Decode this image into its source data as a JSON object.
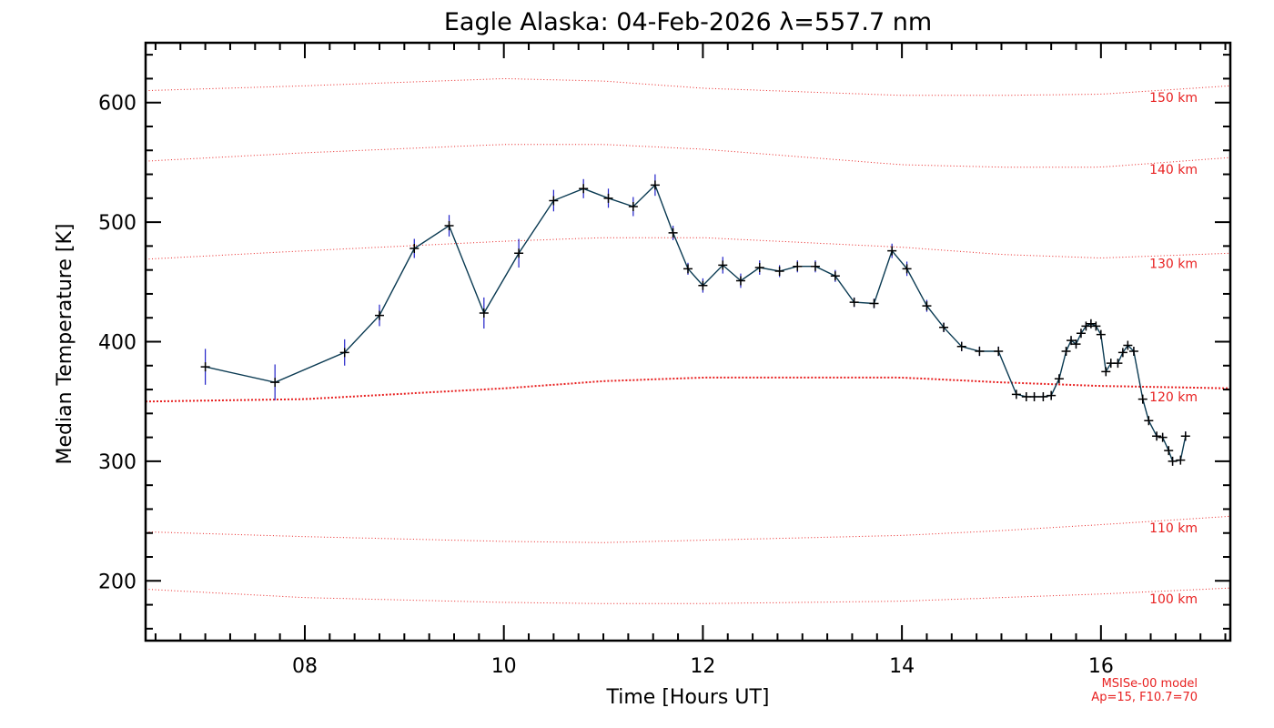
{
  "chart_data": {
    "type": "line",
    "title": "Eagle Alaska: 04-Feb-2026 λ=557.7 nm",
    "xlabel": "Time [Hours UT]",
    "ylabel": "Median Temperature [K]",
    "xlim": [
      6.4,
      17.3
    ],
    "ylim": [
      150,
      650
    ],
    "x_ticks": [
      8,
      10,
      12,
      14,
      16
    ],
    "x_tick_labels": [
      "08",
      "10",
      "12",
      "14",
      "16"
    ],
    "y_ticks": [
      200,
      300,
      400,
      500,
      600
    ],
    "y_tick_labels": [
      "200",
      "300",
      "400",
      "500",
      "600"
    ],
    "footnote": [
      "MSISe-00 model",
      "Ap=15, F10.7=70"
    ],
    "colors": {
      "line": "#0a3a52",
      "error": "#2020c8",
      "marker": "#000000",
      "model": "#e82020"
    },
    "series": [
      {
        "name": "Median Temperature",
        "points": [
          {
            "x": 7.0,
            "y": 379,
            "err": 15
          },
          {
            "x": 7.7,
            "y": 366,
            "err": 15
          },
          {
            "x": 8.4,
            "y": 391,
            "err": 11
          },
          {
            "x": 8.75,
            "y": 422,
            "err": 9
          },
          {
            "x": 9.1,
            "y": 478,
            "err": 8
          },
          {
            "x": 9.45,
            "y": 497,
            "err": 9
          },
          {
            "x": 9.8,
            "y": 424,
            "err": 13
          },
          {
            "x": 10.15,
            "y": 474,
            "err": 12
          },
          {
            "x": 10.5,
            "y": 518,
            "err": 9
          },
          {
            "x": 10.8,
            "y": 528,
            "err": 8
          },
          {
            "x": 11.05,
            "y": 520,
            "err": 8
          },
          {
            "x": 11.3,
            "y": 513,
            "err": 8
          },
          {
            "x": 11.52,
            "y": 531,
            "err": 9
          },
          {
            "x": 11.7,
            "y": 491,
            "err": 6
          },
          {
            "x": 11.85,
            "y": 461,
            "err": 5
          },
          {
            "x": 12.0,
            "y": 447,
            "err": 6
          },
          {
            "x": 12.2,
            "y": 464,
            "err": 7
          },
          {
            "x": 12.38,
            "y": 451,
            "err": 6
          },
          {
            "x": 12.57,
            "y": 462,
            "err": 6
          },
          {
            "x": 12.77,
            "y": 459,
            "err": 5
          },
          {
            "x": 12.95,
            "y": 463,
            "err": 5
          },
          {
            "x": 13.13,
            "y": 463,
            "err": 5
          },
          {
            "x": 13.33,
            "y": 455,
            "err": 5
          },
          {
            "x": 13.52,
            "y": 433,
            "err": 4
          },
          {
            "x": 13.72,
            "y": 432,
            "err": 4
          },
          {
            "x": 13.9,
            "y": 476,
            "err": 6
          },
          {
            "x": 14.05,
            "y": 461,
            "err": 6
          },
          {
            "x": 14.25,
            "y": 430,
            "err": 5
          },
          {
            "x": 14.42,
            "y": 412,
            "err": 4
          },
          {
            "x": 14.6,
            "y": 396,
            "err": 4
          },
          {
            "x": 14.78,
            "y": 392,
            "err": 4
          },
          {
            "x": 14.97,
            "y": 392,
            "err": 4
          },
          {
            "x": 15.15,
            "y": 356,
            "err": 3
          },
          {
            "x": 15.25,
            "y": 354,
            "err": 3
          },
          {
            "x": 15.33,
            "y": 354,
            "err": 3
          },
          {
            "x": 15.42,
            "y": 354,
            "err": 3
          },
          {
            "x": 15.5,
            "y": 355,
            "err": 3
          },
          {
            "x": 15.58,
            "y": 369,
            "err": 3
          },
          {
            "x": 15.65,
            "y": 392,
            "err": 3
          },
          {
            "x": 15.7,
            "y": 401,
            "err": 3
          },
          {
            "x": 15.75,
            "y": 398,
            "err": 3
          },
          {
            "x": 15.8,
            "y": 407,
            "err": 3
          },
          {
            "x": 15.85,
            "y": 413,
            "err": 3
          },
          {
            "x": 15.9,
            "y": 415,
            "err": 3
          },
          {
            "x": 15.95,
            "y": 413,
            "err": 3
          },
          {
            "x": 16.0,
            "y": 406,
            "err": 3
          },
          {
            "x": 16.05,
            "y": 375,
            "err": 3
          },
          {
            "x": 16.1,
            "y": 382,
            "err": 3
          },
          {
            "x": 16.17,
            "y": 382,
            "err": 3
          },
          {
            "x": 16.22,
            "y": 391,
            "err": 3
          },
          {
            "x": 16.27,
            "y": 397,
            "err": 3
          },
          {
            "x": 16.33,
            "y": 392,
            "err": 3
          },
          {
            "x": 16.42,
            "y": 352,
            "err": 3
          },
          {
            "x": 16.48,
            "y": 334,
            "err": 3
          },
          {
            "x": 16.56,
            "y": 321,
            "err": 3
          },
          {
            "x": 16.62,
            "y": 320,
            "err": 3
          },
          {
            "x": 16.68,
            "y": 309,
            "err": 3
          },
          {
            "x": 16.72,
            "y": 300,
            "err": 3
          },
          {
            "x": 16.8,
            "y": 301,
            "err": 3
          },
          {
            "x": 16.85,
            "y": 321,
            "err": 4
          }
        ]
      }
    ],
    "model_curves": [
      {
        "label": "150 km",
        "x": [
          6.4,
          8.0,
          10.0,
          11.0,
          12.0,
          14.0,
          15.0,
          16.0,
          17.3
        ],
        "y": [
          610,
          614,
          620,
          618,
          612,
          606,
          606,
          607,
          614
        ],
        "bold": false
      },
      {
        "label": "140 km",
        "x": [
          6.4,
          8.0,
          10.0,
          11.0,
          12.0,
          14.0,
          15.0,
          16.0,
          17.3
        ],
        "y": [
          551,
          558,
          565,
          565,
          561,
          548,
          546,
          546,
          554
        ],
        "bold": false
      },
      {
        "label": "130 km",
        "x": [
          6.4,
          8.0,
          10.0,
          11.0,
          12.0,
          14.0,
          15.0,
          16.0,
          17.3
        ],
        "y": [
          469,
          476,
          484,
          487,
          487,
          479,
          473,
          470,
          474
        ],
        "bold": false
      },
      {
        "label": "120 km",
        "x": [
          6.4,
          8.0,
          10.0,
          11.0,
          12.0,
          14.0,
          15.0,
          16.0,
          17.3
        ],
        "y": [
          350,
          352,
          361,
          367,
          370,
          370,
          366,
          363,
          361
        ],
        "bold": true
      },
      {
        "label": "110 km",
        "x": [
          6.4,
          8.0,
          10.0,
          11.0,
          12.0,
          14.0,
          15.0,
          16.0,
          17.3
        ],
        "y": [
          241,
          237,
          233,
          232,
          234,
          238,
          242,
          247,
          254
        ],
        "bold": false
      },
      {
        "label": "100 km",
        "x": [
          6.4,
          8.0,
          10.0,
          11.0,
          12.0,
          14.0,
          15.0,
          16.0,
          17.3
        ],
        "y": [
          193,
          186,
          182,
          181,
          181,
          183,
          186,
          189,
          194
        ],
        "bold": false
      }
    ]
  }
}
